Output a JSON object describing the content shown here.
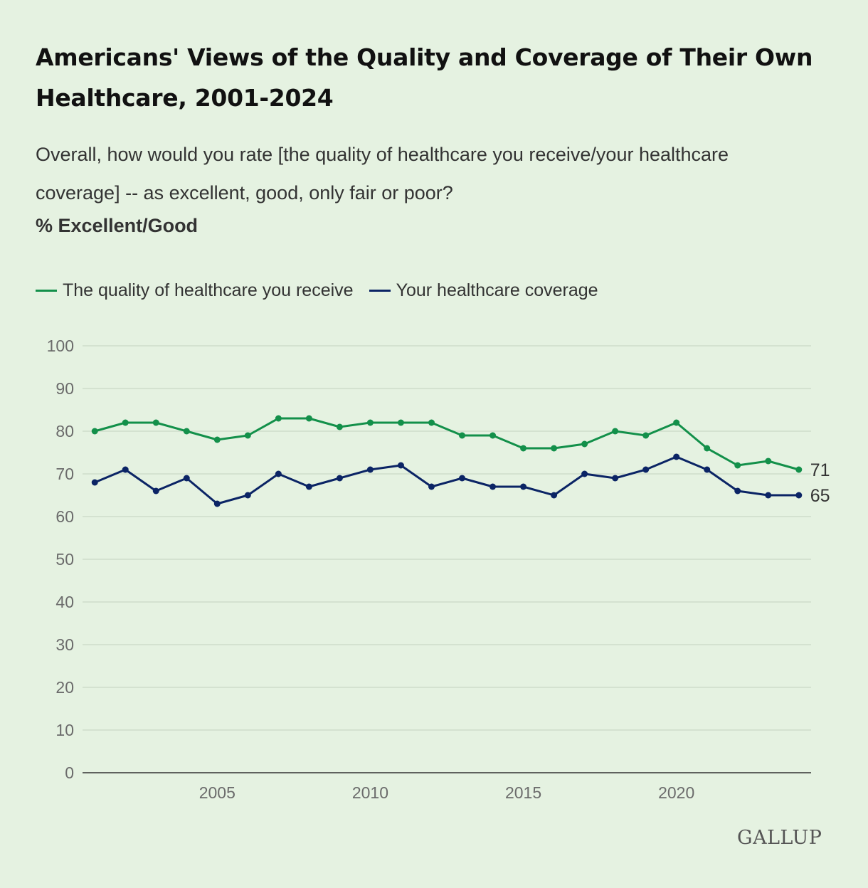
{
  "header": {
    "title": "Americans' Views of the Quality and Coverage of Their Own Healthcare, 2001-2024",
    "subtitle": "Overall, how would you rate [the quality of healthcare you receive/your healthcare coverage] -- as excellent, good, only fair or poor?",
    "unit_label": "% Excellent/Good"
  },
  "brand": {
    "text": "GALLUP"
  },
  "colors": {
    "quality": "#13904a",
    "coverage": "#0b2465",
    "grid": "#cfdccb",
    "axis": "#333333"
  },
  "chart_data": {
    "type": "line",
    "x": [
      2001,
      2002,
      2003,
      2004,
      2005,
      2006,
      2007,
      2008,
      2009,
      2010,
      2011,
      2012,
      2013,
      2014,
      2015,
      2016,
      2017,
      2018,
      2019,
      2020,
      2021,
      2022,
      2023,
      2024
    ],
    "series": [
      {
        "name": "The quality of healthcare you receive",
        "values": [
          80,
          82,
          82,
          80,
          78,
          79,
          83,
          83,
          81,
          82,
          82,
          82,
          79,
          79,
          76,
          76,
          77,
          80,
          79,
          82,
          76,
          72,
          73,
          71
        ],
        "end_label": "71"
      },
      {
        "name": "Your healthcare coverage",
        "values": [
          68,
          71,
          66,
          69,
          63,
          65,
          70,
          67,
          69,
          71,
          72,
          67,
          69,
          67,
          67,
          65,
          70,
          69,
          71,
          74,
          71,
          66,
          65,
          65
        ],
        "end_label": "65"
      }
    ],
    "xticks": [
      2005,
      2010,
      2015,
      2020
    ],
    "yticks": [
      0,
      10,
      20,
      30,
      40,
      50,
      60,
      70,
      80,
      90,
      100
    ],
    "ylim": [
      0,
      100
    ],
    "xlim": [
      2000.6,
      2024.4
    ],
    "grid": true,
    "legend": "top-left"
  }
}
